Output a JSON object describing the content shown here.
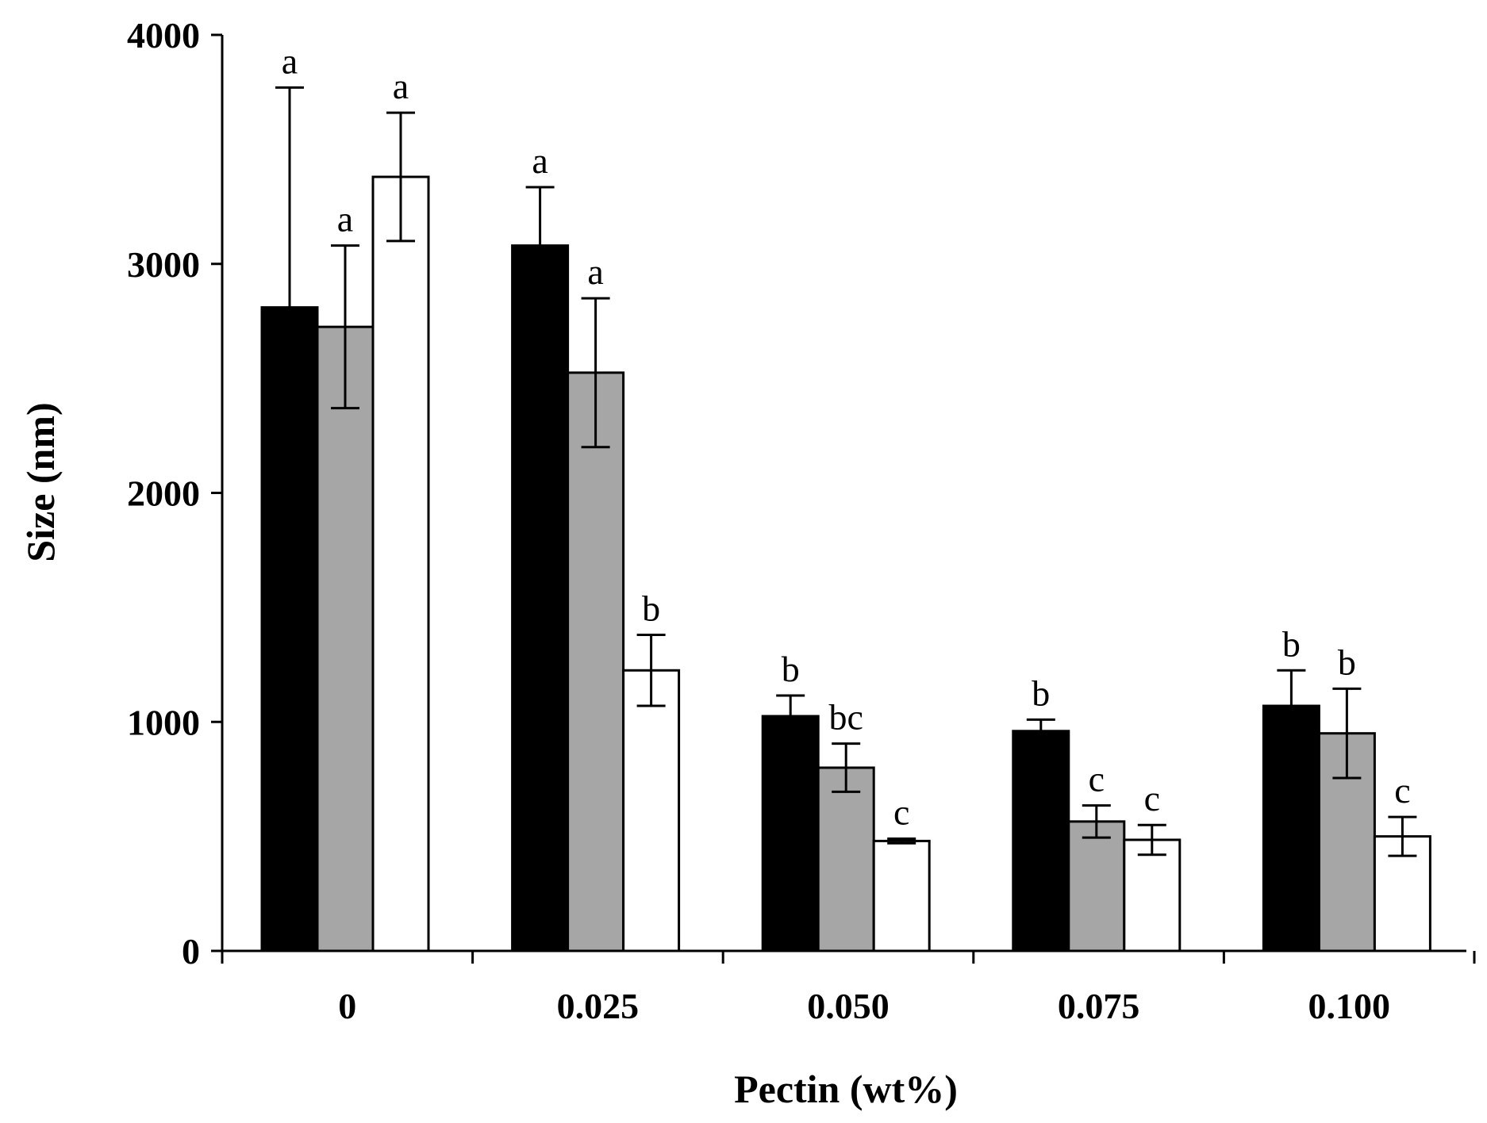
{
  "chart_data": {
    "type": "bar",
    "title": "",
    "xlabel": "Pectin (wt%)",
    "ylabel": "Size (nm)",
    "ylim": [
      0,
      4000
    ],
    "yticks": [
      0,
      1000,
      2000,
      3000,
      4000
    ],
    "grid": false,
    "legend": "none",
    "categories": [
      "0",
      "0.025",
      "0.050",
      "0.075",
      "0.100"
    ],
    "series": [
      {
        "name": "series-black",
        "color": "#000000",
        "values": [
          2810,
          3080,
          1025,
          960,
          1070
        ],
        "errors": [
          960,
          255,
          90,
          50,
          155
        ],
        "labels": [
          "a",
          "a",
          "b",
          "b",
          "b"
        ]
      },
      {
        "name": "series-gray",
        "color": "#a6a6a6",
        "values": [
          2725,
          2525,
          800,
          565,
          950
        ],
        "errors": [
          355,
          325,
          105,
          70,
          195
        ],
        "labels": [
          "a",
          "a",
          "bc",
          "c",
          "b"
        ]
      },
      {
        "name": "series-white",
        "color": "#ffffff",
        "values": [
          3380,
          1225,
          480,
          485,
          500
        ],
        "errors": [
          280,
          155,
          10,
          65,
          85
        ],
        "labels": [
          "a",
          "b",
          "c",
          "c",
          "c"
        ]
      }
    ]
  }
}
